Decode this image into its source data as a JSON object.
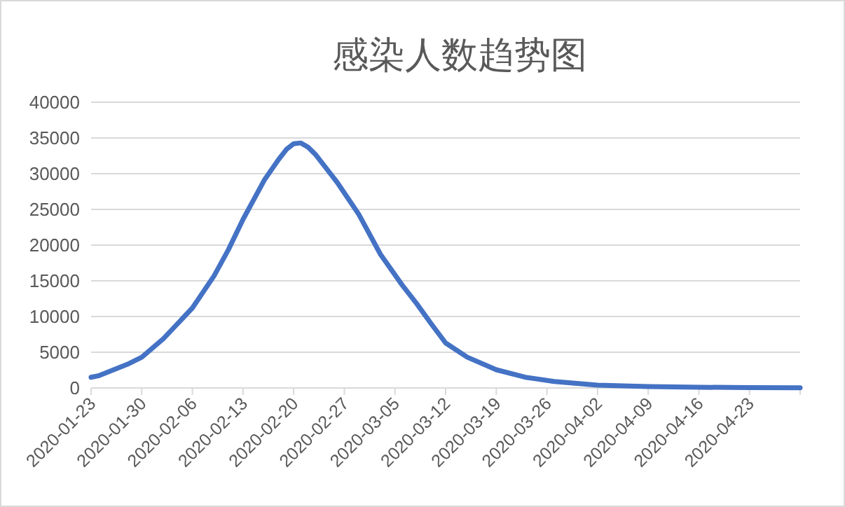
{
  "chart_data": {
    "type": "line",
    "title": "感染人数趋势图",
    "x": [
      "2020-01-23",
      "2020-01-24",
      "2020-01-26",
      "2020-01-28",
      "2020-01-30",
      "2020-02-02",
      "2020-02-06",
      "2020-02-09",
      "2020-02-11",
      "2020-02-13",
      "2020-02-16",
      "2020-02-18",
      "2020-02-19",
      "2020-02-20",
      "2020-02-21",
      "2020-02-22",
      "2020-02-23",
      "2020-02-26",
      "2020-02-29",
      "2020-03-03",
      "2020-03-06",
      "2020-03-08",
      "2020-03-10",
      "2020-03-12",
      "2020-03-15",
      "2020-03-19",
      "2020-03-23",
      "2020-03-27",
      "2020-04-02",
      "2020-04-09",
      "2020-04-16",
      "2020-04-23",
      "2020-04-30"
    ],
    "series": [
      {
        "color": "#4472c4",
        "values": [
          1500,
          1700,
          2500,
          3300,
          4300,
          6900,
          11200,
          15700,
          19400,
          23600,
          29200,
          32100,
          33400,
          34200,
          34300,
          33700,
          32700,
          28800,
          24300,
          18700,
          14400,
          11800,
          9000,
          6300,
          4300,
          2550,
          1500,
          900,
          400,
          200,
          100,
          50,
          20
        ]
      }
    ],
    "xlim": [
      "2020-01-23",
      "2020-04-30"
    ],
    "xticks": [
      "2020-01-23",
      "2020-01-30",
      "2020-02-06",
      "2020-02-13",
      "2020-02-20",
      "2020-02-27",
      "2020-03-05",
      "2020-03-12",
      "2020-03-19",
      "2020-03-26",
      "2020-04-02",
      "2020-04-09",
      "2020-04-16",
      "2020-04-23",
      {
        "value": "2020-04-30",
        "label": null
      }
    ],
    "ylim": [
      0,
      40000
    ],
    "yticks": [
      0,
      5000,
      10000,
      15000,
      20000,
      25000,
      30000,
      35000,
      40000
    ],
    "grid": "y"
  }
}
